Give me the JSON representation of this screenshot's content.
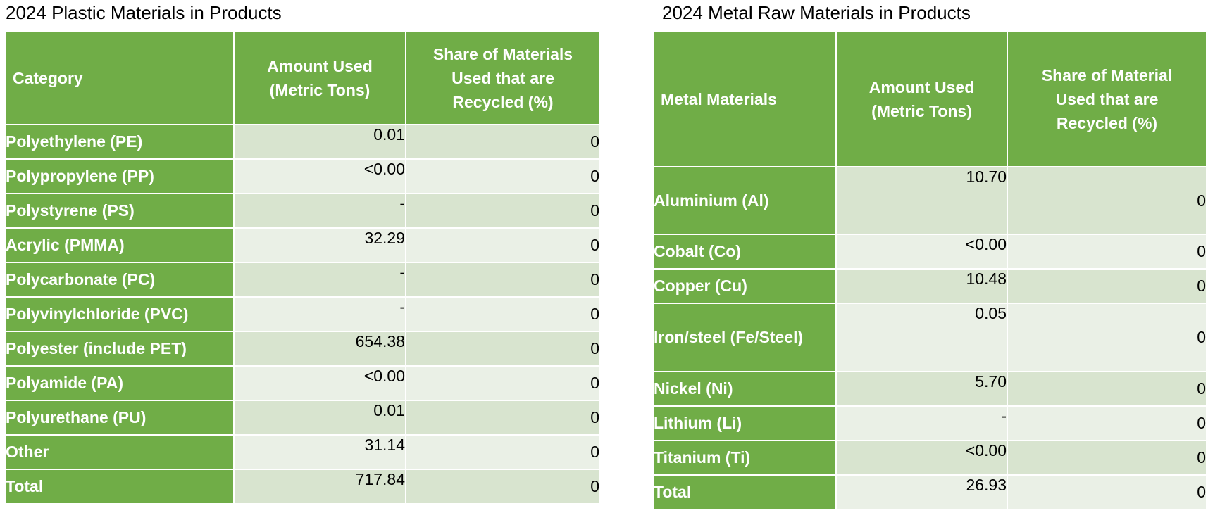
{
  "plastic_table": {
    "title": "2024 Plastic Materials in Products",
    "headers": {
      "category": "Category",
      "amount_line1": "Amount Used",
      "amount_line2": "(Metric Tons)",
      "share_line1": "Share of Materials",
      "share_line2": "Used that are",
      "share_line3": "Recycled (%)"
    },
    "rows": [
      {
        "name": "Polyethylene (PE)",
        "amount": "0.01",
        "share": "0"
      },
      {
        "name": "Polypropylene (PP)",
        "amount": "<0.00",
        "share": "0"
      },
      {
        "name": "Polystyrene (PS)",
        "amount": "-",
        "share": "0"
      },
      {
        "name": "Acrylic (PMMA)",
        "amount": "32.29",
        "share": "0"
      },
      {
        "name": "Polycarbonate (PC)",
        "amount": "-",
        "share": "0"
      },
      {
        "name": "Polyvinylchloride (PVC)",
        "amount": "-",
        "share": "0"
      },
      {
        "name": "Polyester (include PET)",
        "amount": "654.38",
        "share": "0"
      },
      {
        "name": "Polyamide (PA)",
        "amount": "<0.00",
        "share": "0"
      },
      {
        "name": "Polyurethane (PU)",
        "amount": "0.01",
        "share": "0"
      },
      {
        "name": "Other",
        "amount": "31.14",
        "share": "0"
      },
      {
        "name": "Total",
        "amount": "717.84",
        "share": "0"
      }
    ]
  },
  "metal_table": {
    "title": "2024 Metal Raw Materials in Products",
    "headers": {
      "category": "Metal Materials",
      "amount_line1": "Amount Used",
      "amount_line2": "(Metric Tons)",
      "share_line1": "Share of Material",
      "share_line2": "Used that are",
      "share_line3": "Recycled (%)"
    },
    "rows": [
      {
        "name": "Aluminium (Al)",
        "amount": "10.70",
        "share": "0"
      },
      {
        "name": "Cobalt (Co)",
        "amount": "<0.00",
        "share": "0"
      },
      {
        "name": "Copper (Cu)",
        "amount": "10.48",
        "share": "0"
      },
      {
        "name": "Iron/steel (Fe/Steel)",
        "amount": "0.05",
        "share": "0"
      },
      {
        "name": "Nickel (Ni)",
        "amount": "5.70",
        "share": "0"
      },
      {
        "name": "Lithium (Li)",
        "amount": "-",
        "share": "0"
      },
      {
        "name": "Titanium (Ti)",
        "amount": "<0.00",
        "share": "0"
      },
      {
        "name": "Total",
        "amount": "26.93",
        "share": "0"
      }
    ]
  },
  "colors": {
    "header_green": "#70ad47",
    "row_band_dark": "#d8e4cf",
    "row_band_light": "#eaf0e6"
  }
}
